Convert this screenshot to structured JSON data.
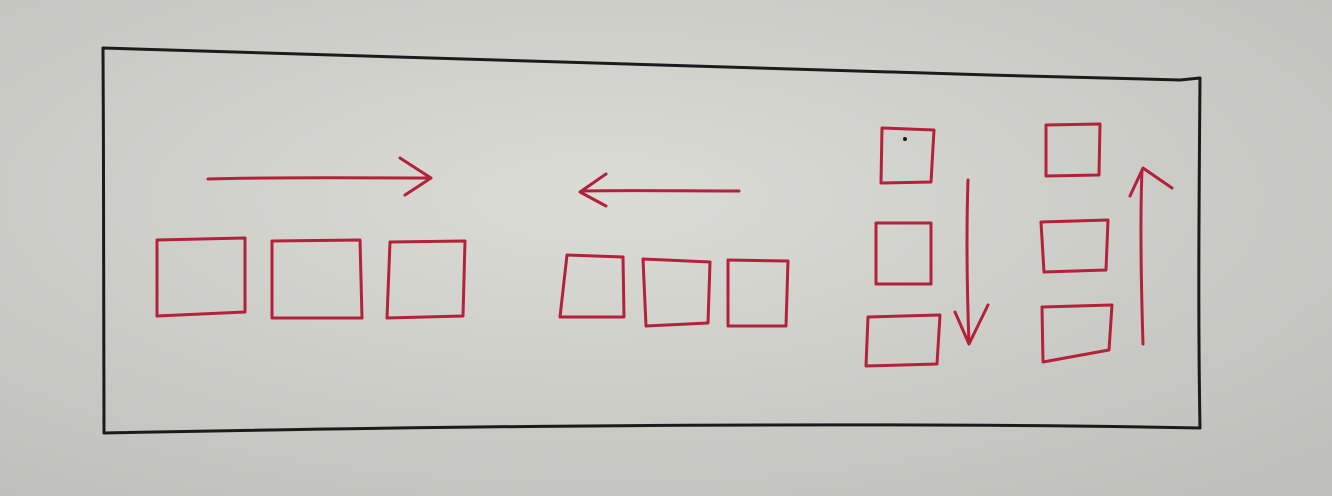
{
  "diagram": {
    "colors": {
      "paper": "#d6d7d2",
      "frame": "#1b1b1b",
      "box": "#b3213a",
      "arrow": "#b3213a"
    },
    "groups": [
      {
        "id": "row-left-to-right",
        "orientation": "horizontal",
        "direction": "right",
        "box_count": 3
      },
      {
        "id": "row-right-to-left",
        "orientation": "horizontal",
        "direction": "left",
        "box_count": 3
      },
      {
        "id": "column-top-to-bottom",
        "orientation": "vertical",
        "direction": "down",
        "box_count": 3
      },
      {
        "id": "column-bottom-to-top",
        "orientation": "vertical",
        "direction": "up",
        "box_count": 3
      }
    ]
  }
}
